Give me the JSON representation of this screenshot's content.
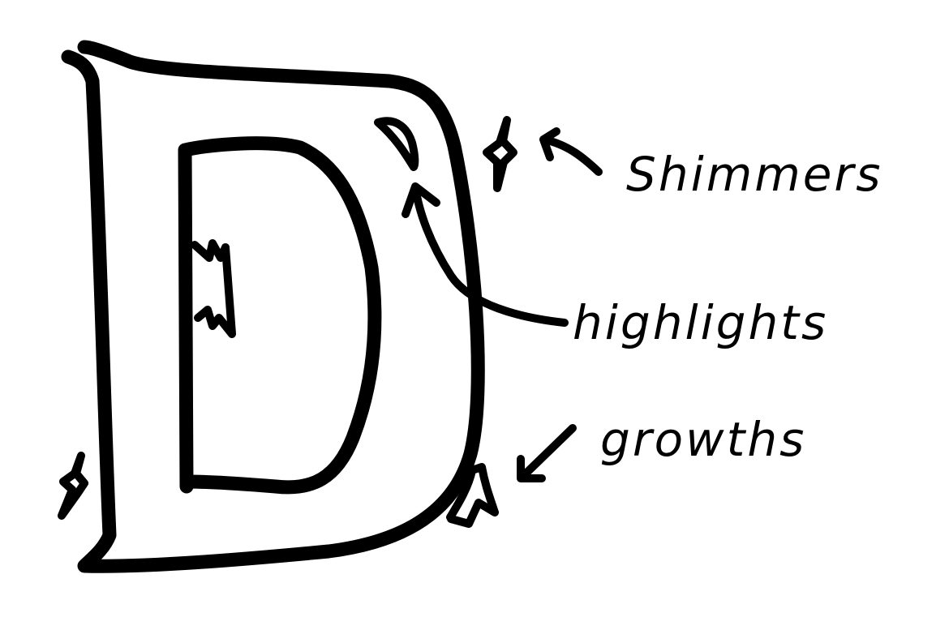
{
  "diagram": {
    "annotations": [
      {
        "id": "shimmers",
        "text": "Shimmers"
      },
      {
        "id": "highlights",
        "text": "highlights"
      },
      {
        "id": "growths",
        "text": "growths"
      }
    ],
    "colors": {
      "ink": "#000000",
      "background": "#ffffff"
    }
  }
}
